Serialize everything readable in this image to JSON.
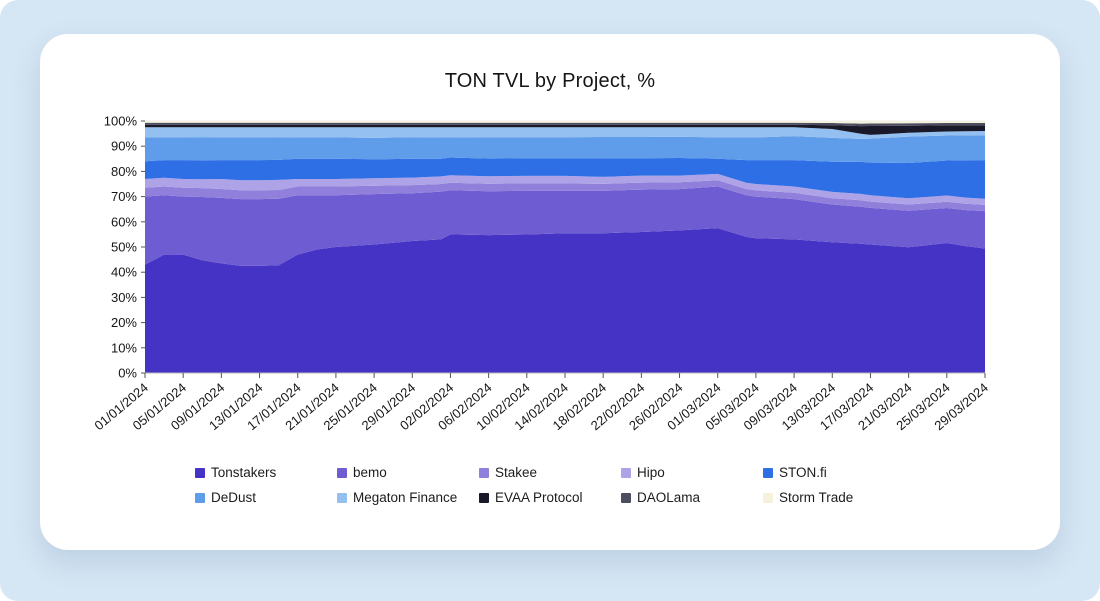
{
  "page": {
    "background_color": "#d5e6f4",
    "card_color": "#ffffff"
  },
  "chart_data": {
    "type": "area",
    "stacked": true,
    "percent": true,
    "title": "TON TVL by Project, %",
    "legend_position": "bottom",
    "grid": false,
    "ylim": [
      0,
      100
    ],
    "y_ticks": [
      "0%",
      "10%",
      "20%",
      "30%",
      "40%",
      "50%",
      "60%",
      "70%",
      "80%",
      "90%",
      "100%"
    ],
    "x_unit": "days since 01/01/2024",
    "x": [
      0,
      2,
      4,
      6,
      8,
      10,
      12,
      14,
      16,
      18,
      20,
      24,
      28,
      31,
      32,
      36,
      40,
      44,
      48,
      52,
      56,
      60,
      63,
      64,
      68,
      72,
      75,
      76,
      80,
      84,
      86,
      88
    ],
    "x_ticks": [
      {
        "t": 0,
        "label": "01/01/2024"
      },
      {
        "t": 4,
        "label": "05/01/2024"
      },
      {
        "t": 8,
        "label": "09/01/2024"
      },
      {
        "t": 12,
        "label": "13/01/2024"
      },
      {
        "t": 16,
        "label": "17/01/2024"
      },
      {
        "t": 20,
        "label": "21/01/2024"
      },
      {
        "t": 24,
        "label": "25/01/2024"
      },
      {
        "t": 28,
        "label": "29/01/2024"
      },
      {
        "t": 32,
        "label": "02/02/2024"
      },
      {
        "t": 36,
        "label": "06/02/2024"
      },
      {
        "t": 40,
        "label": "10/02/2024"
      },
      {
        "t": 44,
        "label": "14/02/2024"
      },
      {
        "t": 48,
        "label": "18/02/2024"
      },
      {
        "t": 52,
        "label": "22/02/2024"
      },
      {
        "t": 56,
        "label": "26/02/2024"
      },
      {
        "t": 60,
        "label": "01/03/2024"
      },
      {
        "t": 64,
        "label": "05/03/2024"
      },
      {
        "t": 68,
        "label": "09/03/2024"
      },
      {
        "t": 72,
        "label": "13/03/2024"
      },
      {
        "t": 76,
        "label": "17/03/2024"
      },
      {
        "t": 80,
        "label": "21/03/2024"
      },
      {
        "t": 84,
        "label": "25/03/2024"
      },
      {
        "t": 88,
        "label": "29/03/2024"
      }
    ],
    "series": [
      {
        "name": "Tonstakers",
        "color": "#4533c5",
        "values": [
          43,
          47,
          47,
          44.5,
          43.5,
          42.5,
          42.5,
          43,
          47,
          49,
          50,
          51,
          52.5,
          53,
          55,
          55,
          55.5,
          56,
          56,
          56.5,
          57,
          57.5,
          54,
          53.5,
          53,
          52,
          50.5,
          51,
          50,
          52,
          51,
          50
        ]
      },
      {
        "name": "bemo",
        "color": "#6e5cd2",
        "values": [
          27,
          23.5,
          23,
          25,
          26,
          26.5,
          26.5,
          26.5,
          23.5,
          21.5,
          20.5,
          20,
          19,
          19,
          17.5,
          17.5,
          17.5,
          17,
          17,
          17,
          16.5,
          16.5,
          16.5,
          16.5,
          16,
          15,
          14.5,
          14.5,
          14.5,
          14,
          14.5,
          15
        ]
      },
      {
        "name": "Stakee",
        "color": "#9080dc",
        "values": [
          3.5,
          3.5,
          3.5,
          3.5,
          3.5,
          3.5,
          3.5,
          3.5,
          3.5,
          3.5,
          3.5,
          3.3,
          3.2,
          3,
          3,
          3,
          3,
          3,
          2.8,
          2.8,
          2.7,
          2.5,
          2.5,
          2.5,
          2.5,
          2.5,
          2.5,
          2.5,
          2.5,
          2.5,
          2.5,
          2.5
        ]
      },
      {
        "name": "Hipo",
        "color": "#afa3e8",
        "values": [
          3.5,
          3.5,
          3.5,
          3.5,
          4,
          4,
          4,
          4,
          3,
          3,
          3,
          3,
          3,
          3,
          3,
          3,
          3,
          3,
          2.8,
          2.8,
          2.7,
          2.5,
          2.5,
          2.5,
          2.5,
          2.5,
          2.5,
          2.5,
          2.5,
          2.5,
          2.5,
          2.5
        ]
      },
      {
        "name": "STON.fi",
        "color": "#2e6fe6",
        "values": [
          7,
          7,
          7.5,
          7.5,
          7.5,
          8,
          8,
          8,
          8,
          8,
          8,
          7.5,
          7.5,
          7,
          7,
          7,
          7,
          7,
          7.5,
          7,
          7,
          6,
          9,
          9.5,
          10.5,
          12,
          12.5,
          13,
          14,
          14,
          15,
          15.5
        ]
      },
      {
        "name": "DeDust",
        "color": "#5f9ce9",
        "values": [
          9.5,
          9,
          9,
          9,
          9,
          9,
          9,
          9,
          8.5,
          8.5,
          8.5,
          8.5,
          8.5,
          8.5,
          8,
          8.5,
          8.5,
          8.5,
          8.5,
          8.5,
          8.5,
          8.5,
          9,
          9,
          9.5,
          9.5,
          9,
          9.5,
          10.5,
          10,
          10,
          10
        ]
      },
      {
        "name": "Megaton Finance",
        "color": "#93c0f0",
        "values": [
          4,
          4,
          4,
          4,
          4,
          4,
          4,
          4,
          4,
          4,
          4,
          4.2,
          4,
          4,
          4,
          4,
          4,
          4,
          3.9,
          3.9,
          3.8,
          4,
          4,
          4,
          3.5,
          3.5,
          2,
          1.5,
          1.5,
          1.6,
          1.7,
          1.7
        ]
      },
      {
        "name": "EVAA Protocol",
        "color": "#191929",
        "values": [
          1,
          1,
          1,
          1,
          1,
          1,
          1,
          1,
          1,
          1,
          1,
          1,
          1,
          1,
          1,
          1,
          1,
          1,
          1,
          1,
          1,
          1,
          1,
          1,
          1,
          1.5,
          3,
          3.5,
          2.8,
          2.5,
          2.4,
          2.3
        ]
      },
      {
        "name": "DAOLama",
        "color": "#4d4d60",
        "values": [
          0.8,
          0.8,
          0.8,
          0.8,
          0.8,
          0.8,
          0.8,
          0.8,
          0.8,
          0.8,
          0.8,
          0.8,
          0.8,
          0.8,
          0.8,
          0.8,
          0.8,
          0.8,
          0.8,
          0.8,
          0.8,
          0.8,
          0.8,
          0.8,
          0.8,
          0.9,
          1,
          1,
          1,
          0.9,
          0.9,
          0.9
        ]
      },
      {
        "name": "Storm Trade",
        "color": "#f6f1dd",
        "values": [
          0.7,
          0.7,
          0.7,
          0.7,
          0.7,
          0.7,
          0.7,
          0.7,
          0.7,
          0.7,
          0.7,
          0.7,
          0.7,
          0.7,
          0.7,
          0.7,
          0.7,
          0.7,
          0.7,
          0.7,
          0.7,
          0.7,
          0.7,
          0.7,
          0.7,
          0.8,
          1,
          1,
          0.9,
          0.8,
          0.8,
          0.8
        ]
      }
    ]
  }
}
